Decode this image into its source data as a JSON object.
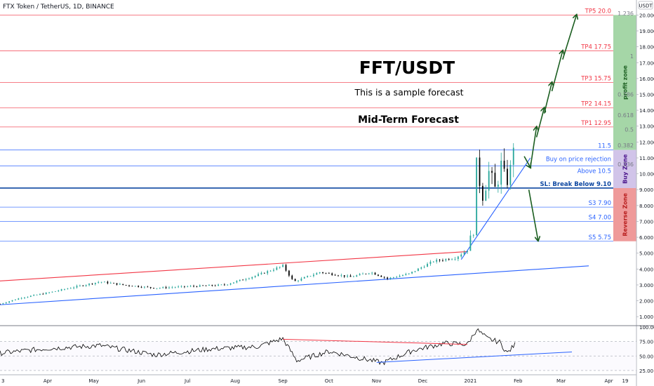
{
  "header": {
    "symbol_title": "FTX Token / TetherUS, 1D, BINANCE",
    "currency": "USDT"
  },
  "colors": {
    "candle_up": "#26a69a",
    "candle_down": "#000000",
    "level_red": "#f23645",
    "level_blue": "#2962ff",
    "sl_blue": "#0d47a1",
    "profit_zone": "#a5d6a7",
    "buy_zone": "#d1c4e9",
    "reverse_zone": "#ef9a9a",
    "arrow": "#1b5e20",
    "rsi_line": "#000000"
  },
  "annotations": {
    "title": "FFT/USDT",
    "subtitle": "This is a sample forecast",
    "horizon": "Mid-Term Forecast"
  },
  "zones": [
    {
      "key": "profit",
      "label": "profit zone",
      "from": 11.5,
      "to": 20.0,
      "color": "#a5d6a7",
      "text_color": "#1b5e20"
    },
    {
      "key": "buy",
      "label": "Buy Zone",
      "from": 9.1,
      "to": 11.5,
      "color": "#d1c4e9",
      "text_color": "#4a148c"
    },
    {
      "key": "reverse",
      "label": "Reverse Zone",
      "from": 5.75,
      "to": 9.1,
      "color": "#ef9a9a",
      "text_color": "#b71c1c"
    }
  ],
  "chart_data": {
    "type": "line",
    "y_axis_range": [
      0.7,
      20.15
    ],
    "y_ticks": [
      "20.000",
      "19.000",
      "18.000",
      "17.000",
      "16.000",
      "15.000",
      "14.000",
      "13.000",
      "12.000",
      "11.000",
      "10.000",
      "9.000",
      "8.000",
      "7.000",
      "6.000",
      "5.000",
      "4.000",
      "3.000",
      "2.000",
      "1.000"
    ],
    "y_tick_values": [
      20,
      19,
      18,
      17,
      16,
      15,
      14,
      13,
      12,
      11,
      10,
      9,
      8,
      7,
      6,
      5,
      4,
      3,
      2,
      1
    ],
    "x_ticks": [
      {
        "label": "3",
        "date": "2020-03-01"
      },
      {
        "label": "Apr",
        "date": "2020-04-01"
      },
      {
        "label": "May",
        "date": "2020-05-01"
      },
      {
        "label": "Jun",
        "date": "2020-06-01"
      },
      {
        "label": "Jul",
        "date": "2020-07-01"
      },
      {
        "label": "Aug",
        "date": "2020-08-01"
      },
      {
        "label": "Sep",
        "date": "2020-09-01"
      },
      {
        "label": "Oct",
        "date": "2020-10-01"
      },
      {
        "label": "Nov",
        "date": "2020-11-01"
      },
      {
        "label": "Dec",
        "date": "2020-12-01"
      },
      {
        "label": "2021",
        "date": "2021-01-01"
      },
      {
        "label": "Feb",
        "date": "2021-02-01"
      },
      {
        "label": "Mar",
        "date": "2021-03-01"
      },
      {
        "label": "Apr",
        "date": "2021-04-01"
      },
      {
        "label": "19",
        "date": "2021-04-19"
      }
    ],
    "x_range": [
      "2020-03-01",
      "2021-04-19"
    ],
    "price_path": [
      {
        "date": "2020-03-01",
        "close": 1.8
      },
      {
        "date": "2020-03-15",
        "close": 2.2
      },
      {
        "date": "2020-04-01",
        "close": 2.5
      },
      {
        "date": "2020-04-20",
        "close": 2.9
      },
      {
        "date": "2020-05-05",
        "close": 3.2
      },
      {
        "date": "2020-05-20",
        "close": 3.0
      },
      {
        "date": "2020-06-10",
        "close": 2.8
      },
      {
        "date": "2020-07-01",
        "close": 2.9
      },
      {
        "date": "2020-07-25",
        "close": 3.0
      },
      {
        "date": "2020-08-15",
        "close": 3.6
      },
      {
        "date": "2020-09-01",
        "close": 4.2
      },
      {
        "date": "2020-09-08",
        "close": 3.2
      },
      {
        "date": "2020-09-25",
        "close": 3.8
      },
      {
        "date": "2020-10-15",
        "close": 3.5
      },
      {
        "date": "2020-10-28",
        "close": 3.8
      },
      {
        "date": "2020-11-08",
        "close": 3.4
      },
      {
        "date": "2020-11-22",
        "close": 3.7
      },
      {
        "date": "2020-12-08",
        "close": 4.5
      },
      {
        "date": "2020-12-22",
        "close": 4.7
      },
      {
        "date": "2020-12-30",
        "close": 5.2
      },
      {
        "date": "2021-01-03",
        "close": 6.5
      },
      {
        "date": "2021-01-05",
        "close": 10.4
      },
      {
        "date": "2021-01-09",
        "close": 8.7
      },
      {
        "date": "2021-01-13",
        "close": 10.1
      },
      {
        "date": "2021-01-17",
        "close": 9.0
      },
      {
        "date": "2021-01-21",
        "close": 10.5
      },
      {
        "date": "2021-01-24",
        "close": 9.4
      },
      {
        "date": "2021-01-27",
        "close": 10.2
      },
      {
        "date": "2021-01-29",
        "close": 12.0
      },
      {
        "date": "2021-01-30",
        "close": 12.6
      }
    ],
    "levels": [
      {
        "label": "TP5 20.0",
        "value": 20.0,
        "color": "#f23645"
      },
      {
        "label": "TP4 17.75",
        "value": 17.75,
        "color": "#f23645"
      },
      {
        "label": "TP3 15.75",
        "value": 15.75,
        "color": "#f23645"
      },
      {
        "label": "TP2 14.15",
        "value": 14.15,
        "color": "#f23645"
      },
      {
        "label": "TP1 12.95",
        "value": 12.95,
        "color": "#f23645"
      },
      {
        "label": "11.5",
        "value": 11.5,
        "color": "#2962ff"
      },
      {
        "label": "Buy on price rejection",
        "value": 10.5,
        "color": "#2962ff"
      },
      {
        "label": "Above 10.5",
        "value": 10.5,
        "color": "#2962ff"
      },
      {
        "label": "SL: Break Below 9.10",
        "value": 9.1,
        "color": "#0d47a1"
      },
      {
        "label": "S3 7.90",
        "value": 7.9,
        "color": "#2962ff"
      },
      {
        "label": "S4 7.00",
        "value": 7.0,
        "color": "#2962ff"
      },
      {
        "label": "S5 5.75",
        "value": 5.75,
        "color": "#2962ff"
      }
    ],
    "fib_labels": [
      {
        "label": "1.236",
        "value": 20.1
      },
      {
        "label": "1",
        "value": 17.4
      },
      {
        "label": "0.786",
        "value": 15.0
      },
      {
        "label": "0.618",
        "value": 13.7
      },
      {
        "label": "0.5",
        "value": 12.8
      },
      {
        "label": "0.382",
        "value": 11.8
      },
      {
        "label": "0.236",
        "value": 10.6
      }
    ],
    "trendlines": [
      {
        "name": "upper channel",
        "color": "#f23645",
        "from": {
          "date": "2020-03-01",
          "value": 3.25
        },
        "to": {
          "date": "2020-12-30",
          "value": 5.1
        }
      },
      {
        "name": "lower channel",
        "color": "#2962ff",
        "from": {
          "date": "2020-03-01",
          "value": 1.75
        },
        "to": {
          "date": "2021-03-19",
          "value": 4.2
        }
      },
      {
        "name": "rising support",
        "color": "#2962ff",
        "from": {
          "date": "2020-12-26",
          "value": 4.6
        },
        "to": {
          "date": "2021-02-09",
          "value": 11.0
        }
      }
    ],
    "forecast_arrows": [
      {
        "from": {
          "date": "2021-02-05",
          "value": 11.1
        },
        "to": {
          "date": "2021-02-09",
          "value": 10.4
        }
      },
      {
        "from": {
          "date": "2021-02-09",
          "value": 10.4
        },
        "to": {
          "date": "2021-02-13",
          "value": 12.95
        }
      },
      {
        "from": {
          "date": "2021-02-13",
          "value": 12.3
        },
        "to": {
          "date": "2021-02-18",
          "value": 14.15
        }
      },
      {
        "from": {
          "date": "2021-02-18",
          "value": 13.8
        },
        "to": {
          "date": "2021-02-23",
          "value": 15.75
        }
      },
      {
        "from": {
          "date": "2021-02-23",
          "value": 15.2
        },
        "to": {
          "date": "2021-03-02",
          "value": 17.75
        }
      },
      {
        "from": {
          "date": "2021-03-02",
          "value": 17.2
        },
        "to": {
          "date": "2021-03-11",
          "value": 20.0
        }
      },
      {
        "from": {
          "date": "2021-02-08",
          "value": 9.0
        },
        "to": {
          "date": "2021-02-14",
          "value": 5.8
        }
      }
    ],
    "rsi": {
      "range": [
        20,
        100
      ],
      "ticks": [
        "100.00",
        "75.00",
        "50.00",
        "25.00"
      ],
      "tick_values": [
        100,
        75,
        50,
        25
      ],
      "path": [
        {
          "date": "2020-03-01",
          "value": 55
        },
        {
          "date": "2020-04-01",
          "value": 63
        },
        {
          "date": "2020-05-05",
          "value": 68
        },
        {
          "date": "2020-06-10",
          "value": 52
        },
        {
          "date": "2020-07-15",
          "value": 62
        },
        {
          "date": "2020-08-15",
          "value": 66
        },
        {
          "date": "2020-09-01",
          "value": 80
        },
        {
          "date": "2020-09-10",
          "value": 42
        },
        {
          "date": "2020-10-01",
          "value": 58
        },
        {
          "date": "2020-11-05",
          "value": 38
        },
        {
          "date": "2020-11-25",
          "value": 60
        },
        {
          "date": "2020-12-15",
          "value": 72
        },
        {
          "date": "2020-12-30",
          "value": 70
        },
        {
          "date": "2021-01-05",
          "value": 96
        },
        {
          "date": "2021-01-12",
          "value": 80
        },
        {
          "date": "2021-01-20",
          "value": 74
        },
        {
          "date": "2021-01-25",
          "value": 55
        },
        {
          "date": "2021-01-30",
          "value": 70
        }
      ],
      "trendlines": [
        {
          "color": "#f23645",
          "from": {
            "date": "2020-09-01",
            "value": 79
          },
          "to": {
            "date": "2020-12-30",
            "value": 70
          }
        },
        {
          "color": "#2962ff",
          "from": {
            "date": "2020-11-01",
            "value": 39
          },
          "to": {
            "date": "2021-03-08",
            "value": 57
          }
        }
      ]
    }
  }
}
